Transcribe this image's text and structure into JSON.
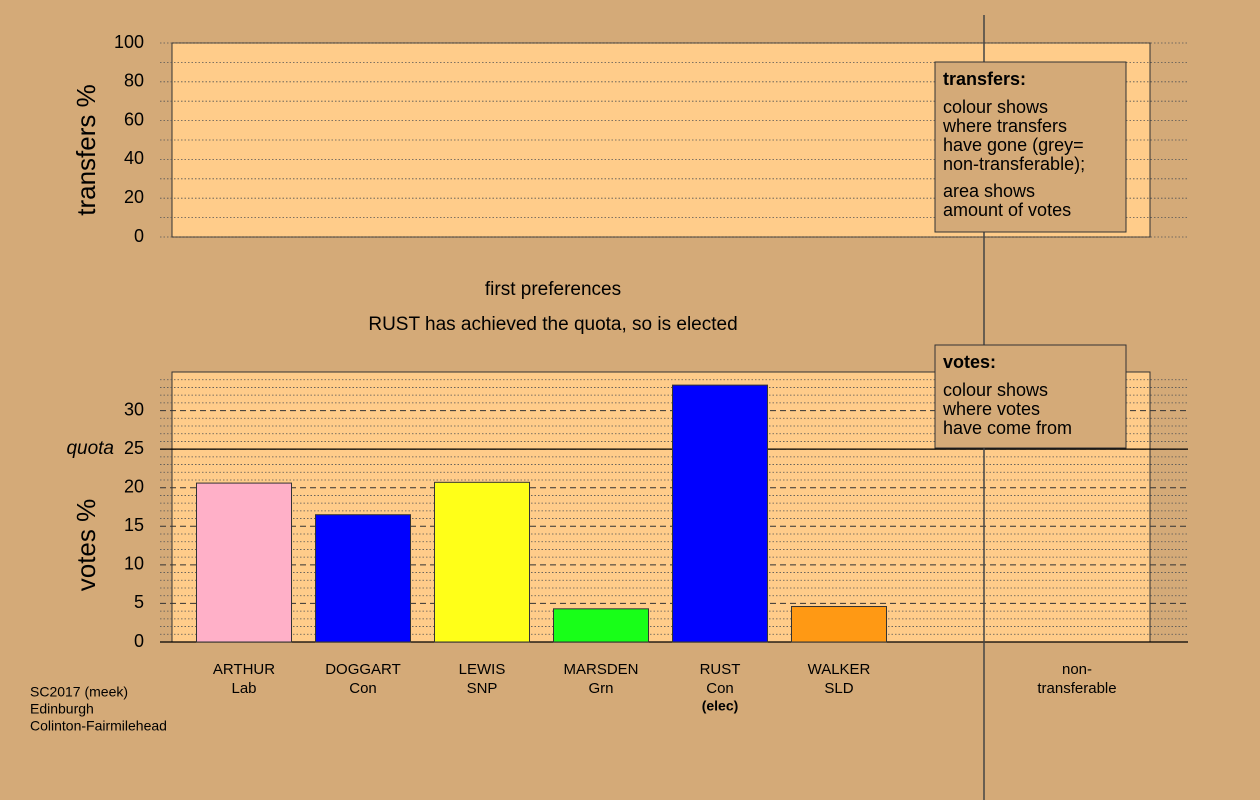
{
  "chart_data": [
    {
      "type": "empty",
      "y_label": "transfers %",
      "ylim": [
        0,
        100
      ],
      "yticks": [
        0,
        20,
        40,
        60,
        80,
        100
      ],
      "minor_yticks": [
        10,
        30,
        50,
        70,
        90
      ],
      "legend_title": "transfers:",
      "legend_lines": [
        "colour shows",
        "where transfers",
        "have gone (grey=",
        "non-transferable);"
      ],
      "legend_lines_2": [
        "area shows",
        "amount of votes"
      ]
    },
    {
      "type": "bar",
      "title": "first preferences",
      "subtitle": "RUST has achieved the quota, so is elected",
      "y_label": "votes %",
      "categories": [
        "ARTHUR",
        "DOGGART",
        "LEWIS",
        "MARSDEN",
        "RUST",
        "WALKER"
      ],
      "parties": [
        "Lab",
        "Con",
        "SNP",
        "Grn",
        "Con",
        "SLD"
      ],
      "sublabels": [
        null,
        null,
        null,
        null,
        "(elec)",
        null
      ],
      "values": [
        20.6,
        16.5,
        20.7,
        4.3,
        33.3,
        4.6
      ],
      "colors": [
        "#ffb0c8",
        "#0000ff",
        "#ffff18",
        "#18ff18",
        "#0000ff",
        "#ff9914"
      ],
      "nontransferable_label": "non-transferable",
      "quota": 25,
      "quota_label": "quota",
      "ylim": [
        0,
        35
      ],
      "yticks": [
        0,
        5,
        10,
        15,
        20,
        25,
        30
      ],
      "minor_yticks": [
        1,
        2,
        3,
        4,
        6,
        7,
        8,
        9,
        11,
        12,
        13,
        14,
        16,
        17,
        18,
        19,
        21,
        22,
        23,
        24,
        26,
        27,
        28,
        29,
        31,
        32,
        33,
        34
      ],
      "legend_title": "votes:",
      "legend_lines": [
        "colour shows",
        "where votes",
        "have come from"
      ]
    }
  ],
  "footer": [
    "SC2017 (meek)",
    "Edinburgh",
    "Colinton-Fairmilehead"
  ]
}
